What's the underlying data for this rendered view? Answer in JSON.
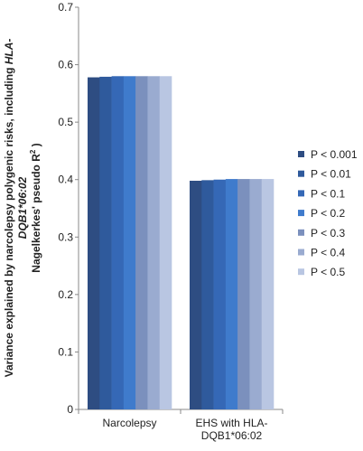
{
  "chart_data": {
    "type": "bar",
    "ylabel_line1": "Variance explained by narcolepsy polygenic risks, including",
    "ylabel_line2_italic": "HLA-DQB1*06:02",
    "ylabel_line3": "Nagelkerkes' pseudo R",
    "ylabel_line3_sup": "2",
    "ylabel_line3_end": ")",
    "ylim": [
      0,
      0.7
    ],
    "yticks": [
      "0",
      "0.1",
      "0.2",
      "0.3",
      "0.4",
      "0.5",
      "0.6",
      "0.7"
    ],
    "categories": [
      "Narcolepsy",
      "EHS with HLA-DQB1*06:02"
    ],
    "category_label_lines": [
      [
        "Narcolepsy"
      ],
      [
        "EHS with HLA-",
        "DQB1*06:02"
      ]
    ],
    "series": [
      {
        "name": "P < 0.001",
        "color": "#2e4d82",
        "values": [
          0.578,
          0.398
        ]
      },
      {
        "name": "P < 0.01",
        "color": "#2f5a9c",
        "values": [
          0.579,
          0.399
        ]
      },
      {
        "name": "P < 0.1",
        "color": "#3568b6",
        "values": [
          0.58,
          0.4
        ]
      },
      {
        "name": "P < 0.2",
        "color": "#3f7bcc",
        "values": [
          0.58,
          0.401
        ]
      },
      {
        "name": "P < 0.3",
        "color": "#7b90bd",
        "values": [
          0.58,
          0.401
        ]
      },
      {
        "name": "P < 0.4",
        "color": "#9aabd0",
        "values": [
          0.58,
          0.401
        ]
      },
      {
        "name": "P < 0.5",
        "color": "#b9c6e2",
        "values": [
          0.58,
          0.401
        ]
      }
    ],
    "grid": false,
    "legend_position": "right"
  }
}
